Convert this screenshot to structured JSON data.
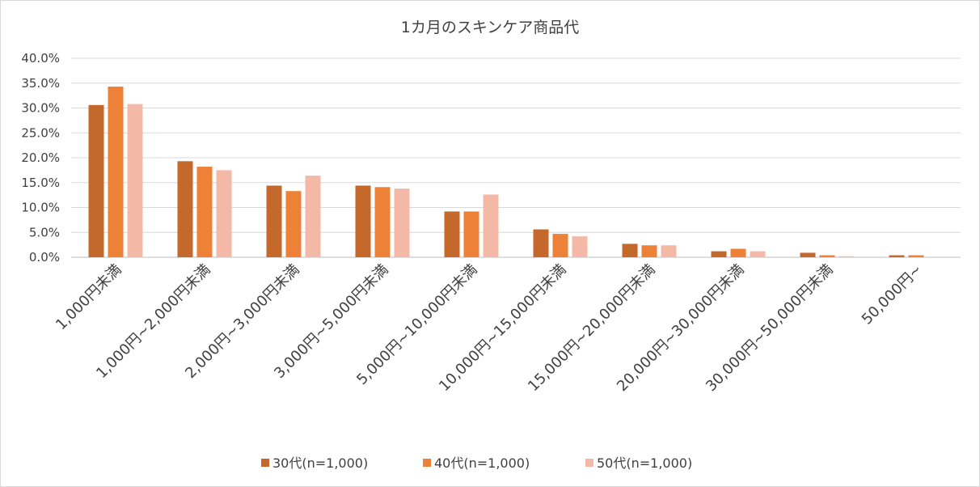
{
  "chart_data": {
    "type": "bar",
    "title": "1カ月のスキンケア商品代",
    "xlabel": "",
    "ylabel": "",
    "ylim": [
      0,
      0.4
    ],
    "yticks": [
      "0.0%",
      "5.0%",
      "10.0%",
      "15.0%",
      "20.0%",
      "25.0%",
      "30.0%",
      "35.0%",
      "40.0%"
    ],
    "grid": true,
    "legend_position": "bottom",
    "categories": [
      "1,000円未満",
      "1,000円~2,000円未満",
      "2,000円~3,000円未満",
      "3,000円~5,000円未満",
      "5,000円~10,000円未満",
      "10,000円~15,000円未満",
      "15,000円~20,000円未満",
      "20,000円~30,000円未満",
      "30,000円~50,000円未満",
      "50,000円~"
    ],
    "series": [
      {
        "name": "30代(n=1,000)",
        "color": "#c5682c",
        "values": [
          0.306,
          0.193,
          0.144,
          0.144,
          0.092,
          0.056,
          0.027,
          0.012,
          0.009,
          0.004
        ]
      },
      {
        "name": "40代(n=1,000)",
        "color": "#ed8137",
        "values": [
          0.343,
          0.182,
          0.133,
          0.141,
          0.092,
          0.047,
          0.024,
          0.017,
          0.004,
          0.004
        ]
      },
      {
        "name": "50代(n=1,000)",
        "color": "#f4b8a6",
        "values": [
          0.308,
          0.175,
          0.164,
          0.138,
          0.126,
          0.042,
          0.024,
          0.012,
          0.002,
          0.0
        ]
      }
    ]
  }
}
